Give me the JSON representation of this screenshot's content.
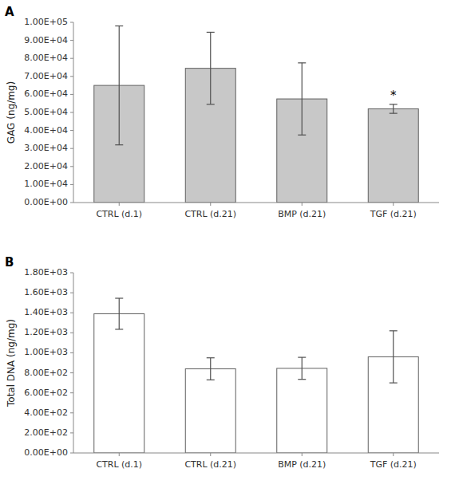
{
  "chart_data": [
    {
      "type": "bar",
      "title": "A",
      "categories": [
        "CTRL (d.1)",
        "CTRL (d.21)",
        "BMP (d.21)",
        "TGF (d.21)"
      ],
      "values": [
        65000,
        74500,
        57500,
        52000
      ],
      "errors": [
        33000,
        20000,
        20000,
        2500
      ],
      "color": "#c8c8c8",
      "ylabel": "GAG (ng/mg)",
      "ylim": [
        0,
        100000
      ],
      "yticks": [
        {
          "value": 0,
          "label": "0.00E+00"
        },
        {
          "value": 10000,
          "label": "1.00E+04"
        },
        {
          "value": 20000,
          "label": "2.00E+04"
        },
        {
          "value": 30000,
          "label": "3.00E+04"
        },
        {
          "value": 40000,
          "label": "4.00E+04"
        },
        {
          "value": 50000,
          "label": "5.00E+04"
        },
        {
          "value": 60000,
          "label": "6.00E+04"
        },
        {
          "value": 70000,
          "label": "7.00E+04"
        },
        {
          "value": 80000,
          "label": "8.00E+04"
        },
        {
          "value": 90000,
          "label": "9.00E+04"
        },
        {
          "value": 100000,
          "label": "1.00E+05"
        }
      ],
      "annotations": [
        {
          "text": "*",
          "category": "TGF (d.21)"
        }
      ],
      "grid": false
    },
    {
      "type": "bar",
      "title": "B",
      "categories": [
        "CTRL (d.1)",
        "CTRL (d.21)",
        "BMP (d.21)",
        "TGF (d.21)"
      ],
      "values": [
        1390,
        840,
        845,
        960
      ],
      "errors": [
        155,
        110,
        110,
        260
      ],
      "color": "#ffffff",
      "ylabel": "Total DNA (ng/mg)",
      "ylim": [
        0,
        1800
      ],
      "yticks": [
        {
          "value": 0,
          "label": "0.00E+00"
        },
        {
          "value": 200,
          "label": "2.00E+02"
        },
        {
          "value": 400,
          "label": "4.00E+02"
        },
        {
          "value": 600,
          "label": "6.00E+02"
        },
        {
          "value": 800,
          "label": "8.00E+02"
        },
        {
          "value": 1000,
          "label": "1.00E+03"
        },
        {
          "value": 1200,
          "label": "1.20E+03"
        },
        {
          "value": 1400,
          "label": "1.40E+03"
        },
        {
          "value": 1600,
          "label": "1.60E+03"
        },
        {
          "value": 1800,
          "label": "1.80E+03"
        }
      ],
      "grid": false
    }
  ]
}
